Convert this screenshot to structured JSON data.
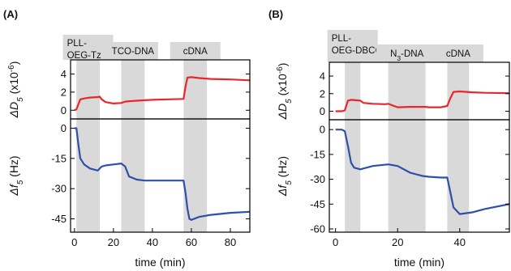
{
  "panel_labels": [
    "(A)",
    "(B)"
  ],
  "colors": {
    "top_series": "#e8262b",
    "bottom_series": "#2f4fa8",
    "injection_band": "#d9d9d9"
  },
  "chart_data": [
    {
      "panel": "(A)",
      "type": "line",
      "xlabel": "time (min)",
      "xlim": [
        -2,
        90
      ],
      "xticks": [
        0,
        20,
        40,
        60,
        80
      ],
      "grid": false,
      "injections": [
        {
          "label": [
            "PLL-",
            "OEG-Tz"
          ],
          "start": 1,
          "end": 13
        },
        {
          "label": [
            "TCO-DNA"
          ],
          "start": 24,
          "end": 36
        },
        {
          "label": [
            "cDNA"
          ],
          "start": 56,
          "end": 68
        }
      ],
      "top": {
        "ylabel_main": "ΔD",
        "ylabel_sub": "5",
        "ylabel_unit": " (x10",
        "ylabel_exp": "-6",
        "ylabel_close": ")",
        "ylim": [
          -0.6,
          5.2
        ],
        "yticks": [
          0,
          2,
          4
        ],
        "series": [
          {
            "color": "#e8262b",
            "x": [
              0,
              1,
              3,
              5,
              8,
              12,
              13,
              14,
              16,
              20,
              24,
              26,
              28,
              32,
              36,
              40,
              48,
              56,
              57,
              58,
              60,
              64,
              70,
              80,
              90
            ],
            "y": [
              0,
              0.1,
              1.2,
              1.3,
              1.4,
              1.45,
              1.5,
              1.2,
              0.9,
              0.75,
              0.8,
              0.95,
              1.0,
              1.05,
              1.1,
              1.15,
              1.2,
              1.25,
              2.6,
              3.6,
              3.65,
              3.55,
              3.45,
              3.4,
              3.3
            ]
          }
        ]
      },
      "bottom": {
        "ylabel_main": "Δf",
        "ylabel_sub": "5",
        "ylabel_unit": " (Hz)",
        "ylim": [
          -50,
          3
        ],
        "yticks": [
          0,
          -15,
          -30,
          -45
        ],
        "series": [
          {
            "color": "#2f4fa8",
            "x": [
              0,
              1,
              2,
              3,
              5,
              8,
              12,
              13,
              14,
              16,
              20,
              24,
              26,
              28,
              32,
              36,
              40,
              48,
              56,
              57,
              58,
              59,
              60,
              64,
              70,
              80,
              90
            ],
            "y": [
              0,
              0,
              -8,
              -15,
              -18,
              -20,
              -21,
              -20,
              -19,
              -18.5,
              -18,
              -17.5,
              -19,
              -24,
              -25.5,
              -26,
              -26,
              -26,
              -26,
              -32,
              -40,
              -45,
              -45.5,
              -44,
              -43,
              -42,
              -41.5
            ]
          }
        ]
      }
    },
    {
      "panel": "(B)",
      "type": "line",
      "xlabel": "time (min)",
      "xlim": [
        -2,
        56
      ],
      "xticks": [
        0,
        20,
        40
      ],
      "grid": false,
      "injections": [
        {
          "label": [
            "PLL-",
            "OEG-DBCO"
          ],
          "start": 3,
          "end": 8
        },
        {
          "label": [
            "N",
            "3",
            "-DNA"
          ],
          "subscript": true,
          "start": 17,
          "end": 29
        },
        {
          "label": [
            "cDNA"
          ],
          "start": 36,
          "end": 43
        }
      ],
      "top": {
        "ylabel_main": "ΔD",
        "ylabel_sub": "5",
        "ylabel_unit": " (x10",
        "ylabel_exp": "-6",
        "ylabel_close": ")",
        "ylim": [
          -0.6,
          5.2
        ],
        "yticks": [
          0,
          2,
          4
        ],
        "series": [
          {
            "color": "#e8262b",
            "x": [
              0,
              2,
              3,
              4,
              5,
              8,
              9,
              12,
              16,
              17,
              20,
              24,
              29,
              30,
              34,
              36,
              37,
              38,
              40,
              44,
              48,
              56
            ],
            "y": [
              0,
              0,
              0.1,
              1.2,
              1.3,
              1.2,
              0.95,
              0.85,
              0.8,
              0.85,
              0.45,
              0.5,
              0.5,
              0.45,
              0.45,
              0.6,
              1.5,
              2.2,
              2.25,
              2.15,
              2.1,
              2.05
            ]
          }
        ]
      },
      "bottom": {
        "ylabel_main": "Δf",
        "ylabel_sub": "5",
        "ylabel_unit": " (Hz)",
        "ylim": [
          -60,
          4
        ],
        "yticks": [
          0,
          -15,
          -30,
          -45,
          -60
        ],
        "series": [
          {
            "color": "#2f4fa8",
            "x": [
              0,
              2,
              3,
              4,
              5,
              6,
              8,
              12,
              17,
              20,
              24,
              26,
              28,
              30,
              34,
              36,
              37,
              38,
              40,
              44,
              48,
              56
            ],
            "y": [
              0,
              0,
              -1,
              -10,
              -20,
              -23,
              -24,
              -22,
              -21,
              -22,
              -26,
              -27,
              -28,
              -28.5,
              -29,
              -29,
              -38,
              -47,
              -51,
              -50,
              -48,
              -45
            ]
          }
        ]
      }
    }
  ]
}
